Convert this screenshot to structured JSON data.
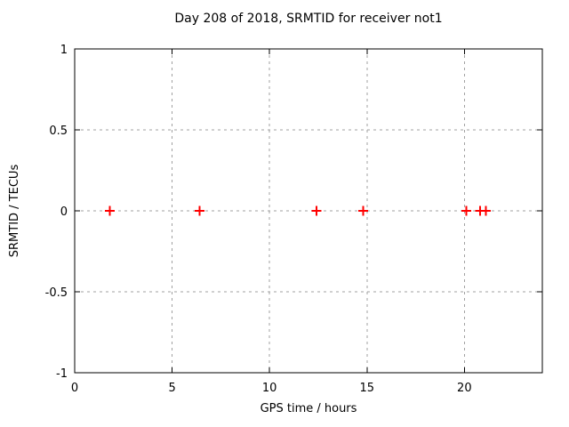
{
  "chart_data": {
    "type": "scatter",
    "title": "Day 208 of 2018, SRMTID for receiver not1",
    "xlabel": "GPS time / hours",
    "ylabel": "SRMTID / TECUs",
    "xlim": [
      0,
      24
    ],
    "ylim": [
      -1,
      1
    ],
    "xticks": [
      0,
      5,
      10,
      15,
      20
    ],
    "yticks": [
      1,
      0.5,
      0,
      -0.5,
      -1
    ],
    "xtick_labels": [
      "0",
      "5",
      "10",
      "15",
      "20"
    ],
    "ytick_labels": [
      "1",
      "0.5",
      "0",
      "-0.5",
      "-1"
    ],
    "grid": true,
    "grid_style": "dashed",
    "ticks_mirrored": true,
    "legend": "none",
    "series": [
      {
        "name": "SRMTID",
        "marker": "plus",
        "color": "#ff0000",
        "x": [
          1.8,
          6.4,
          12.4,
          14.8,
          20.1,
          20.8,
          21.1
        ],
        "y": [
          0,
          0,
          0,
          0,
          0,
          0,
          0
        ]
      }
    ],
    "colors": {
      "marker": "#ff0000",
      "grid": "#a0a0a0",
      "axis": "#000000",
      "background": "#ffffff",
      "text": "#000000"
    }
  }
}
